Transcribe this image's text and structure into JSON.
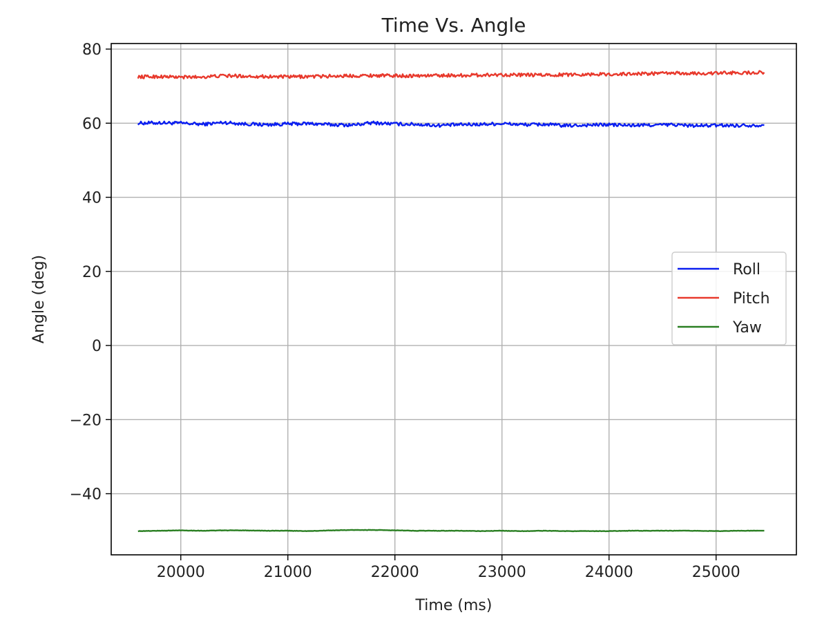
{
  "chart_data": {
    "type": "line",
    "title": "Time Vs. Angle",
    "xlabel": "Time (ms)",
    "ylabel": "Angle (deg)",
    "xlim": [
      19350,
      25750
    ],
    "ylim": [
      -56.5,
      81.5
    ],
    "xticks": [
      20000,
      21000,
      22000,
      23000,
      24000,
      25000
    ],
    "xtick_labels": [
      "20000",
      "21000",
      "22000",
      "23000",
      "24000",
      "25000"
    ],
    "yticks": [
      -40,
      -20,
      0,
      20,
      40,
      60,
      80
    ],
    "ytick_labels": [
      "−40",
      "−20",
      "0",
      "20",
      "40",
      "60",
      "80"
    ],
    "grid": true,
    "legend_position": "center-right",
    "series": [
      {
        "name": "Roll",
        "color": "#0a1ef0",
        "x": [
          19600,
          19800,
          20000,
          20200,
          20400,
          20600,
          20800,
          21000,
          21200,
          21400,
          21600,
          21800,
          22000,
          22200,
          22400,
          22600,
          22800,
          23000,
          23200,
          23400,
          23600,
          23800,
          24000,
          24200,
          24400,
          24600,
          24800,
          25000,
          25200,
          25450
        ],
        "y": [
          60.0,
          60.1,
          60.0,
          59.7,
          60.2,
          59.8,
          59.6,
          59.8,
          59.9,
          59.6,
          59.5,
          60.1,
          59.8,
          59.7,
          59.4,
          59.6,
          59.7,
          59.9,
          59.6,
          59.7,
          59.3,
          59.5,
          59.6,
          59.4,
          59.5,
          59.6,
          59.3,
          59.4,
          59.4,
          59.5
        ],
        "noise": 0.45
      },
      {
        "name": "Pitch",
        "color": "#e8392c",
        "x": [
          19600,
          19800,
          20000,
          20200,
          20400,
          20600,
          20800,
          21000,
          21200,
          21400,
          21600,
          21800,
          22000,
          22200,
          22400,
          22600,
          22800,
          23000,
          23200,
          23400,
          23600,
          23800,
          24000,
          24200,
          24400,
          24600,
          24800,
          25000,
          25200,
          25450
        ],
        "y": [
          72.5,
          72.6,
          72.4,
          72.5,
          72.8,
          72.7,
          72.6,
          72.5,
          72.6,
          72.7,
          72.8,
          72.9,
          72.8,
          72.8,
          72.9,
          72.9,
          73.0,
          73.1,
          73.0,
          73.0,
          73.1,
          73.2,
          73.2,
          73.3,
          73.4,
          73.5,
          73.4,
          73.5,
          73.6,
          73.7
        ],
        "noise": 0.45
      },
      {
        "name": "Yaw",
        "color": "#2a7f22",
        "x": [
          19600,
          19800,
          20000,
          20200,
          20400,
          20600,
          20800,
          21000,
          21200,
          21400,
          21600,
          21800,
          22000,
          22200,
          22400,
          22600,
          22800,
          23000,
          23200,
          23400,
          23600,
          23800,
          24000,
          24200,
          24400,
          24600,
          24800,
          25000,
          25200,
          25450
        ],
        "y": [
          -50.1,
          -50.0,
          -49.9,
          -50.0,
          -49.9,
          -49.9,
          -50.0,
          -50.0,
          -50.1,
          -49.9,
          -49.8,
          -49.8,
          -49.9,
          -50.0,
          -50.0,
          -50.0,
          -50.1,
          -50.0,
          -50.1,
          -50.0,
          -50.1,
          -50.1,
          -50.1,
          -50.0,
          -50.0,
          -50.0,
          -50.0,
          -50.1,
          -50.0,
          -50.0
        ],
        "noise": 0.05
      }
    ]
  }
}
